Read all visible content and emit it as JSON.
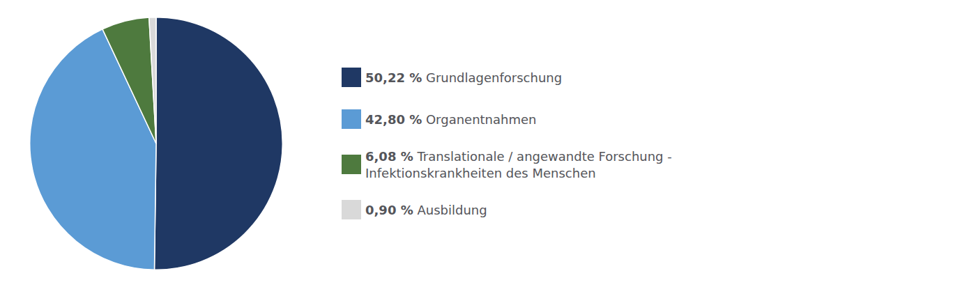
{
  "chart_data": {
    "type": "pie",
    "categories": [
      "Grundlagenforschung",
      "Organentnahmen",
      "Translationale / angewandte Forschung -\nInfektionskrankheiten des Menschen",
      "Ausbildung"
    ],
    "values": [
      50.22,
      42.8,
      6.08,
      0.9
    ],
    "value_labels": [
      "50,22 %",
      "42,80 %",
      "6,08 %",
      "0,90 %"
    ],
    "colors": [
      "#1f3864",
      "#5b9bd5",
      "#4e7a3e",
      "#d9d9d9"
    ],
    "legend": "right"
  }
}
